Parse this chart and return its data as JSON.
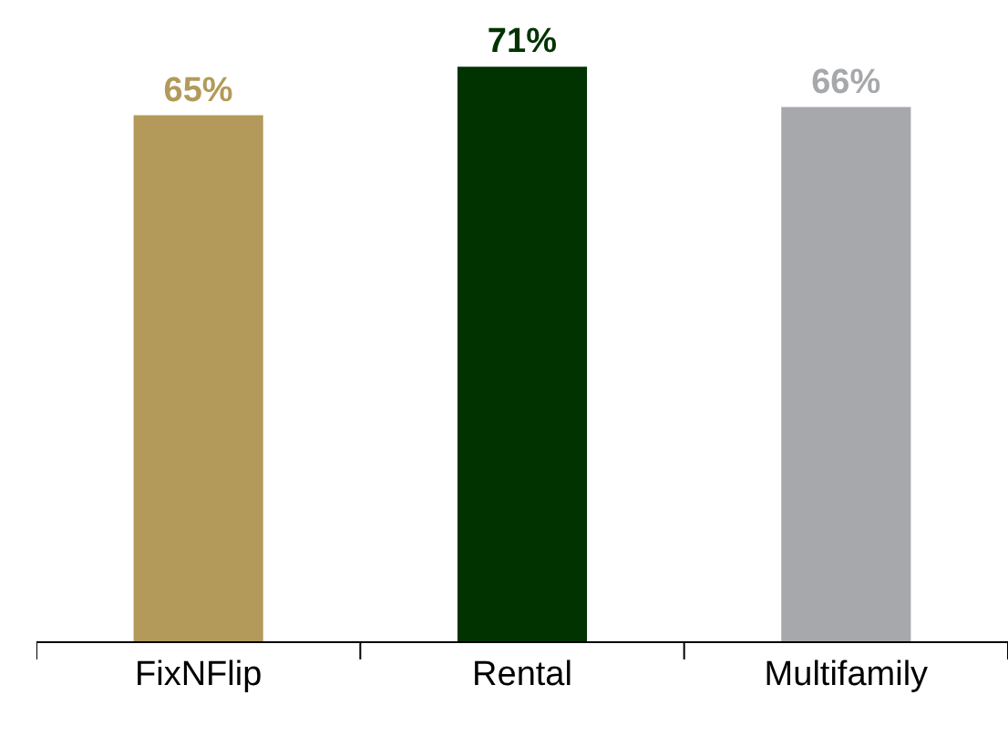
{
  "chart_data": {
    "type": "bar",
    "categories": [
      "FixNFlip",
      "Rental",
      "Multifamily"
    ],
    "values": [
      65,
      71,
      66
    ],
    "colors": [
      "#b39a5a",
      "#003300",
      "#a6a8ab"
    ],
    "value_labels": [
      "65%",
      "71%",
      "66%"
    ],
    "tick_labels": "x",
    "legend": false
  }
}
